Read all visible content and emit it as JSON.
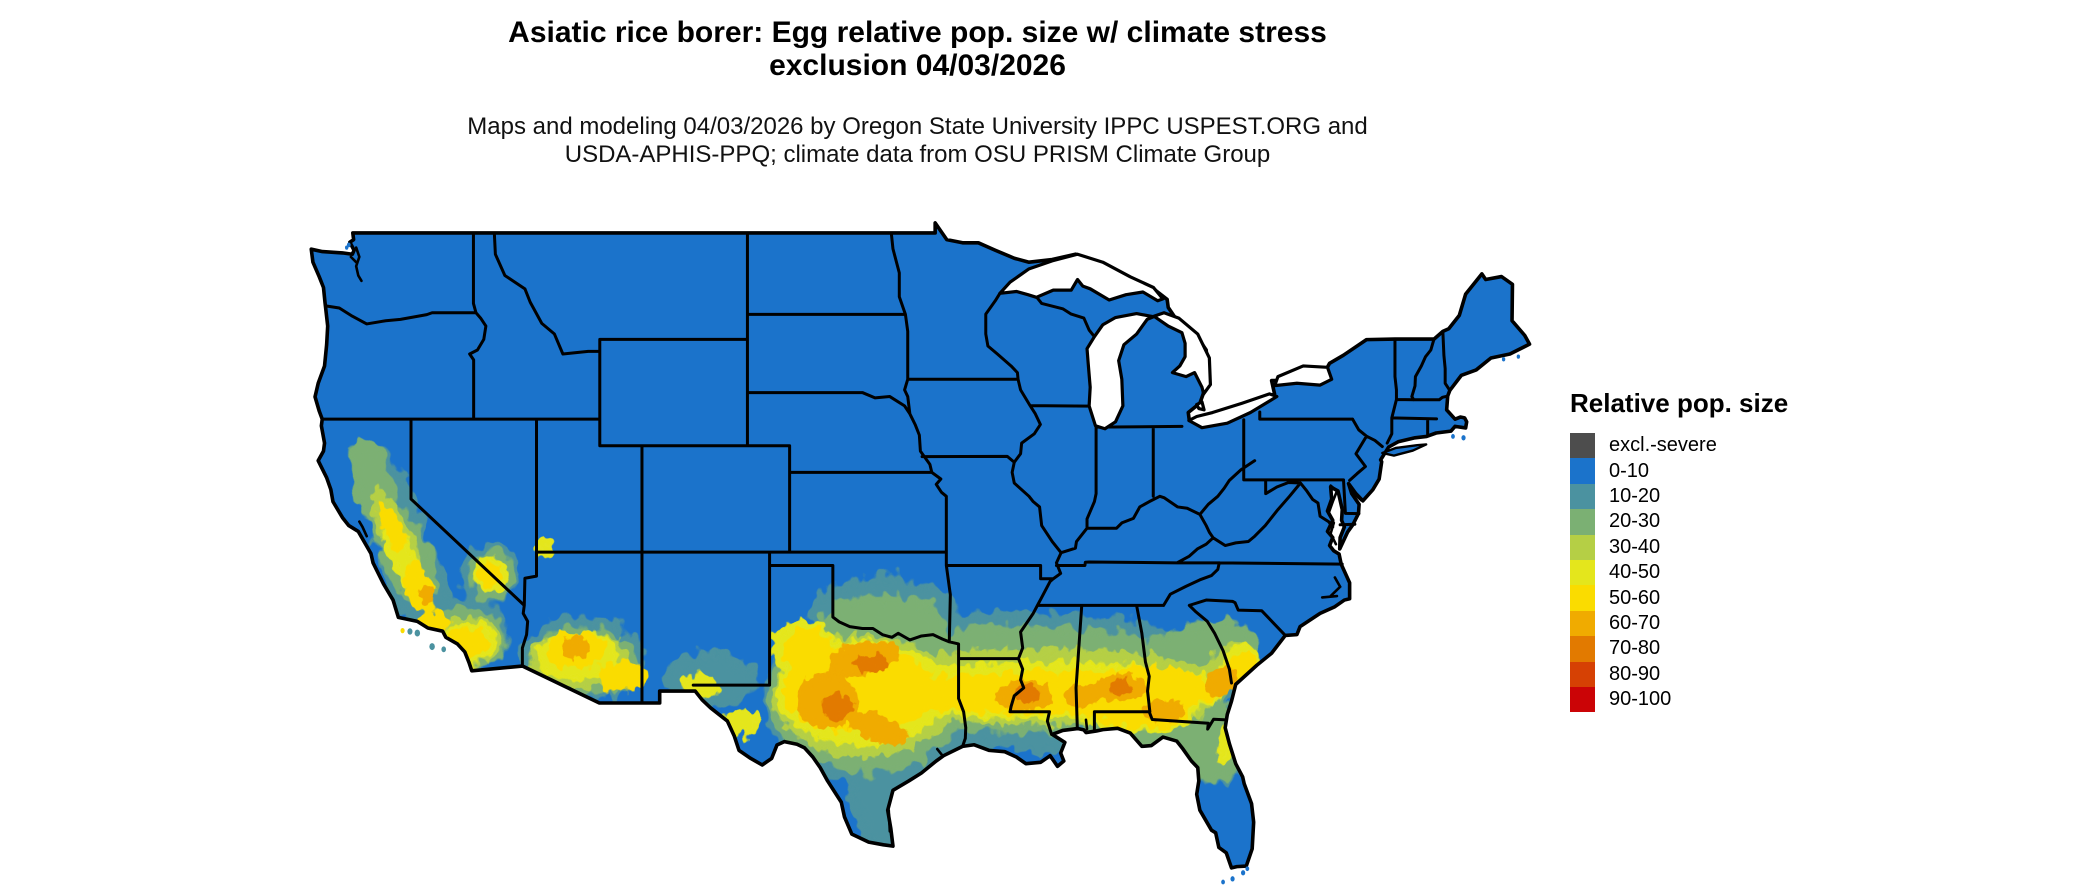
{
  "title": {
    "line1": "Asiatic rice borer: Egg relative pop. size w/ climate stress",
    "line2": "exclusion 04/03/2026"
  },
  "subtitle": {
    "line1": "Maps and modeling 04/03/2026 by Oregon State University IPPC USPEST.ORG and",
    "line2": "USDA-APHIS-PPQ; climate data from OSU PRISM Climate Group"
  },
  "legend": {
    "title": "Relative pop. size",
    "items": [
      {
        "label": "excl.-severe",
        "color": "#4d4d4d"
      },
      {
        "label": "0-10",
        "color": "#1b73cb"
      },
      {
        "label": "10-20",
        "color": "#4b92a0"
      },
      {
        "label": "20-30",
        "color": "#7bb073"
      },
      {
        "label": "30-40",
        "color": "#b5cf45"
      },
      {
        "label": "40-50",
        "color": "#e4e61c"
      },
      {
        "label": "50-60",
        "color": "#fadc00"
      },
      {
        "label": "60-70",
        "color": "#f0ab00"
      },
      {
        "label": "70-80",
        "color": "#e27a00"
      },
      {
        "label": "80-90",
        "color": "#d64104"
      },
      {
        "label": "90-100",
        "color": "#cb0406"
      }
    ]
  },
  "map": {
    "region": "Continental United States",
    "border_color": "#000000",
    "water_color": "#ffffff",
    "base_class": "0-10"
  }
}
